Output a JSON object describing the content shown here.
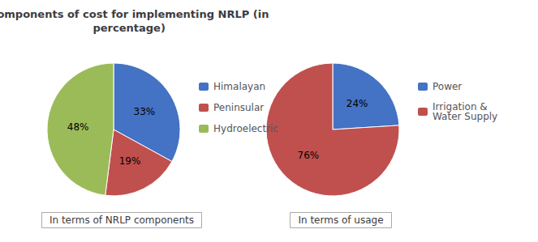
{
  "chart_data": [
    {
      "type": "pie",
      "title": "Components of cost for implementing NRLP (in\npercentage)",
      "subtitle": "In terms of NRLP components",
      "categories": [
        "Himalayan",
        "Peninsular",
        "Hydroelectric"
      ],
      "values": [
        33,
        19,
        48
      ],
      "value_labels": [
        "33%",
        "19%",
        "48%"
      ],
      "colors": [
        "#4472C4",
        "#C0504D",
        "#9BBB59"
      ],
      "data_labels": true,
      "legend": "right"
    },
    {
      "type": "pie",
      "subtitle": "In terms of usage",
      "categories": [
        "Power",
        "Irrigation &\nWater Supply"
      ],
      "values": [
        24,
        76
      ],
      "value_labels": [
        "24%",
        "76%"
      ],
      "colors": [
        "#4472C4",
        "#C0504D"
      ],
      "data_labels": true,
      "legend": "right"
    }
  ]
}
